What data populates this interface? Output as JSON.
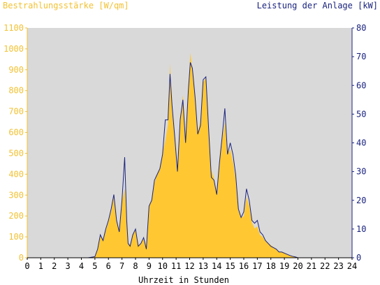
{
  "chart_data": {
    "type": "area",
    "ylabel_left": "Bestrahlungsstärke [W/qm]",
    "ylabel_right": "Leistung der Anlage [kW]",
    "xlabel": "Uhrzeit in Stunden",
    "xlim": [
      0,
      24
    ],
    "ylim_left": [
      0,
      1100
    ],
    "ylim_right": [
      0,
      80
    ],
    "x_ticks": [
      "0",
      "1",
      "2",
      "3",
      "4",
      "5",
      "6",
      "7",
      "8",
      "9",
      "10",
      "11",
      "12",
      "13",
      "14",
      "15",
      "16",
      "17",
      "18",
      "19",
      "20",
      "21",
      "22",
      "23",
      "24"
    ],
    "y_left_ticks": [
      "0",
      "100",
      "200",
      "300",
      "400",
      "500",
      "600",
      "700",
      "800",
      "900",
      "1000",
      "1100"
    ],
    "y_right_ticks": [
      "0",
      "10",
      "20",
      "30",
      "40",
      "50",
      "60",
      "70",
      "80"
    ],
    "colors": {
      "plot_background": "#d9d9d9",
      "irradiance_fill": "#ffc832",
      "power_line": "#1a237e",
      "left_axis": "#f2c233",
      "right_axis": "#1a237e"
    },
    "series": [
      {
        "name": "Bestrahlungsstärke [W/qm]",
        "axis": "left",
        "style": "filled-area",
        "points": [
          [
            0,
            0
          ],
          [
            4.5,
            0
          ],
          [
            5.0,
            5
          ],
          [
            5.2,
            40
          ],
          [
            5.4,
            110
          ],
          [
            5.6,
            80
          ],
          [
            5.8,
            130
          ],
          [
            6.0,
            170
          ],
          [
            6.2,
            220
          ],
          [
            6.4,
            290
          ],
          [
            6.6,
            180
          ],
          [
            6.8,
            130
          ],
          [
            7.0,
            270
          ],
          [
            7.2,
            330
          ],
          [
            7.35,
            180
          ],
          [
            7.45,
            70
          ],
          [
            7.6,
            60
          ],
          [
            7.8,
            110
          ],
          [
            8.0,
            140
          ],
          [
            8.2,
            60
          ],
          [
            8.4,
            70
          ],
          [
            8.6,
            90
          ],
          [
            8.8,
            50
          ],
          [
            9.0,
            250
          ],
          [
            9.2,
            280
          ],
          [
            9.4,
            360
          ],
          [
            9.6,
            400
          ],
          [
            9.8,
            430
          ],
          [
            10.0,
            500
          ],
          [
            10.2,
            560
          ],
          [
            10.4,
            640
          ],
          [
            10.55,
            930
          ],
          [
            10.7,
            700
          ],
          [
            10.9,
            570
          ],
          [
            11.1,
            430
          ],
          [
            11.3,
            650
          ],
          [
            11.5,
            780
          ],
          [
            11.7,
            560
          ],
          [
            11.9,
            810
          ],
          [
            12.05,
            980
          ],
          [
            12.2,
            900
          ],
          [
            12.4,
            780
          ],
          [
            12.6,
            600
          ],
          [
            12.8,
            650
          ],
          [
            13.0,
            840
          ],
          [
            13.2,
            860
          ],
          [
            13.4,
            620
          ],
          [
            13.6,
            420
          ],
          [
            13.8,
            380
          ],
          [
            14.0,
            310
          ],
          [
            14.2,
            450
          ],
          [
            14.4,
            560
          ],
          [
            14.6,
            650
          ],
          [
            14.8,
            490
          ],
          [
            15.0,
            520
          ],
          [
            15.2,
            460
          ],
          [
            15.4,
            380
          ],
          [
            15.6,
            230
          ],
          [
            15.8,
            190
          ],
          [
            16.0,
            200
          ],
          [
            16.2,
            290
          ],
          [
            16.4,
            250
          ],
          [
            16.6,
            170
          ],
          [
            16.8,
            140
          ],
          [
            17.0,
            150
          ],
          [
            17.2,
            110
          ],
          [
            17.4,
            100
          ],
          [
            17.6,
            80
          ],
          [
            17.8,
            70
          ],
          [
            18.0,
            60
          ],
          [
            18.2,
            50
          ],
          [
            18.4,
            40
          ],
          [
            18.6,
            30
          ],
          [
            18.8,
            28
          ],
          [
            19.0,
            25
          ],
          [
            19.2,
            15
          ],
          [
            19.4,
            10
          ],
          [
            19.6,
            7
          ],
          [
            19.8,
            5
          ],
          [
            20.0,
            2
          ],
          [
            20.2,
            0
          ],
          [
            24,
            0
          ]
        ]
      },
      {
        "name": "Leistung der Anlage [kW]",
        "axis": "right",
        "style": "line",
        "points": [
          [
            0,
            0
          ],
          [
            4.5,
            0
          ],
          [
            5.0,
            0.4
          ],
          [
            5.2,
            3
          ],
          [
            5.4,
            8
          ],
          [
            5.6,
            6
          ],
          [
            5.8,
            10
          ],
          [
            6.0,
            13
          ],
          [
            6.2,
            17
          ],
          [
            6.4,
            22
          ],
          [
            6.6,
            13
          ],
          [
            6.8,
            9
          ],
          [
            7.0,
            20
          ],
          [
            7.2,
            35
          ],
          [
            7.35,
            13
          ],
          [
            7.45,
            5
          ],
          [
            7.6,
            4
          ],
          [
            7.8,
            8
          ],
          [
            8.0,
            10
          ],
          [
            8.2,
            4
          ],
          [
            8.4,
            5
          ],
          [
            8.6,
            7
          ],
          [
            8.8,
            3
          ],
          [
            9.0,
            18
          ],
          [
            9.2,
            20
          ],
          [
            9.4,
            27
          ],
          [
            9.6,
            29
          ],
          [
            9.8,
            31
          ],
          [
            10.0,
            36
          ],
          [
            10.2,
            48
          ],
          [
            10.4,
            48
          ],
          [
            10.55,
            64
          ],
          [
            10.7,
            53
          ],
          [
            10.9,
            42
          ],
          [
            11.1,
            30
          ],
          [
            11.3,
            48
          ],
          [
            11.5,
            55
          ],
          [
            11.7,
            40
          ],
          [
            11.9,
            58
          ],
          [
            12.05,
            68
          ],
          [
            12.2,
            66
          ],
          [
            12.4,
            56
          ],
          [
            12.6,
            43
          ],
          [
            12.8,
            46
          ],
          [
            13.0,
            62
          ],
          [
            13.2,
            63
          ],
          [
            13.4,
            45
          ],
          [
            13.6,
            28
          ],
          [
            13.8,
            27
          ],
          [
            14.0,
            22
          ],
          [
            14.2,
            33
          ],
          [
            14.4,
            42
          ],
          [
            14.6,
            52
          ],
          [
            14.8,
            36
          ],
          [
            15.0,
            40
          ],
          [
            15.2,
            36
          ],
          [
            15.4,
            29
          ],
          [
            15.6,
            17
          ],
          [
            15.8,
            14
          ],
          [
            16.0,
            16
          ],
          [
            16.2,
            24
          ],
          [
            16.4,
            20
          ],
          [
            16.6,
            13
          ],
          [
            16.8,
            12
          ],
          [
            17.0,
            13
          ],
          [
            17.2,
            9
          ],
          [
            17.4,
            8
          ],
          [
            17.6,
            6
          ],
          [
            17.8,
            5
          ],
          [
            18.0,
            4
          ],
          [
            18.2,
            3.5
          ],
          [
            18.4,
            3
          ],
          [
            18.6,
            2
          ],
          [
            18.8,
            2
          ],
          [
            19.0,
            1.6
          ],
          [
            19.2,
            1.2
          ],
          [
            19.4,
            0.8
          ],
          [
            19.6,
            0.5
          ],
          [
            19.8,
            0.3
          ],
          [
            20.0,
            0
          ],
          [
            24,
            0
          ]
        ]
      }
    ]
  }
}
